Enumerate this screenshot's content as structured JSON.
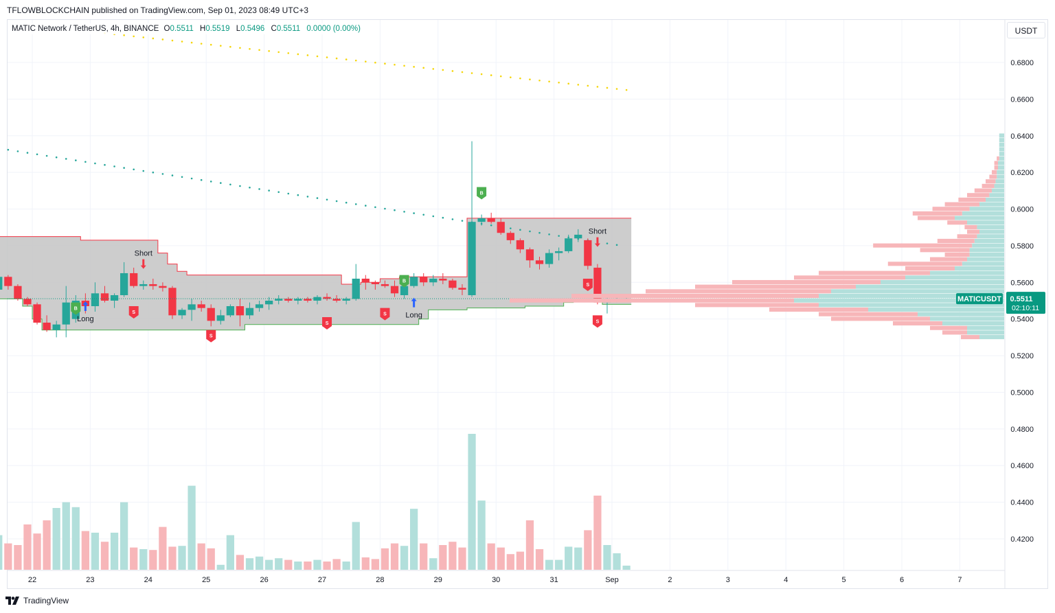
{
  "header": {
    "text": "TFLOWBLOCKCHAIN published on TradingView.com, Sep 01, 2023 08:49 UTC+3"
  },
  "legend": {
    "symbol": "MATIC Network / TetherUS, 4h, BINANCE",
    "open_label": "O",
    "open": "0.5511",
    "high_label": "H",
    "high": "0.5519",
    "low_label": "L",
    "low": "0.5496",
    "close_label": "C",
    "close": "0.5511",
    "change": "0.0000 (0.00%)"
  },
  "currency_button": "USDT",
  "footer": {
    "brand": "TradingView",
    "logo_icon": "tradingview-logo-icon"
  },
  "colors": {
    "up": "#26a69a",
    "down": "#f23645",
    "up_volume": "#b2dfdb",
    "down_volume": "#f7b6b9",
    "band_fill": "#c8c8c8",
    "band_upper": "#f23645",
    "band_lower": "#4caf50",
    "yellow_dots": "#f5d60a",
    "teal_dots": "#26a69a",
    "grid": "#f0f3fa",
    "price_label_bg": "#089981",
    "buy_marker": "#4caf50",
    "sell_marker": "#f23645",
    "long_arrow": "#2962ff",
    "short_arrow": "#f23645"
  },
  "chart_data": {
    "type": "candlestick",
    "symbol": "MATICUSDT",
    "interval": "4h",
    "exchange": "BINANCE",
    "price_scale": {
      "ticks": [
        "0.6800",
        "0.6600",
        "0.6400",
        "0.6200",
        "0.6000",
        "0.5800",
        "0.5600",
        "0.5400",
        "0.5200",
        "0.5000",
        "0.4800",
        "0.4600",
        "0.4400",
        "0.4200"
      ],
      "ylim": [
        0.4,
        0.695
      ]
    },
    "time_axis": {
      "labels": [
        {
          "label": "22",
          "index": 4.5
        },
        {
          "label": "23",
          "index": 10.5
        },
        {
          "label": "24",
          "index": 16.5
        },
        {
          "label": "25",
          "index": 22.5
        },
        {
          "label": "26",
          "index": 28.5
        },
        {
          "label": "27",
          "index": 34.5
        },
        {
          "label": "28",
          "index": 40.5
        },
        {
          "label": "29",
          "index": 46.5
        },
        {
          "label": "30",
          "index": 52.5
        },
        {
          "label": "31",
          "index": 58.5
        },
        {
          "label": "Sep",
          "index": 64.5
        },
        {
          "label": "2",
          "index": 70.5
        },
        {
          "label": "3",
          "index": 76.5
        },
        {
          "label": "4",
          "index": 82.5
        },
        {
          "label": "5",
          "index": 88.5
        },
        {
          "label": "6",
          "index": 94.5
        },
        {
          "label": "7",
          "index": 100.5
        }
      ],
      "index_range": [
        -0.5,
        103.5
      ]
    },
    "last_price": {
      "ticker": "MATICUSDT",
      "price": "0.5511",
      "countdown": "02:10:11",
      "value": 0.5511
    },
    "candles": [
      [
        0.564,
        0.566,
        0.551,
        0.556
      ],
      [
        0.556,
        0.565,
        0.553,
        0.563
      ],
      [
        0.563,
        0.564,
        0.556,
        0.558
      ],
      [
        0.558,
        0.559,
        0.55,
        0.551
      ],
      [
        0.551,
        0.552,
        0.547,
        0.548
      ],
      [
        0.548,
        0.549,
        0.537,
        0.538
      ],
      [
        0.538,
        0.542,
        0.533,
        0.534
      ],
      [
        0.534,
        0.539,
        0.53,
        0.537
      ],
      [
        0.537,
        0.558,
        0.53,
        0.549
      ],
      [
        0.54,
        0.553,
        0.538,
        0.55
      ],
      [
        0.55,
        0.554,
        0.543,
        0.547
      ],
      [
        0.547,
        0.56,
        0.544,
        0.554
      ],
      [
        0.554,
        0.558,
        0.549,
        0.55
      ],
      [
        0.55,
        0.554,
        0.546,
        0.553
      ],
      [
        0.553,
        0.571,
        0.552,
        0.565
      ],
      [
        0.565,
        0.568,
        0.557,
        0.558
      ],
      [
        0.558,
        0.561,
        0.556,
        0.559
      ],
      [
        0.559,
        0.562,
        0.556,
        0.558
      ],
      [
        0.558,
        0.56,
        0.555,
        0.557
      ],
      [
        0.557,
        0.558,
        0.54,
        0.542
      ],
      [
        0.542,
        0.546,
        0.54,
        0.545
      ],
      [
        0.545,
        0.551,
        0.539,
        0.548
      ],
      [
        0.548,
        0.55,
        0.544,
        0.546
      ],
      [
        0.546,
        0.548,
        0.536,
        0.539
      ],
      [
        0.539,
        0.545,
        0.537,
        0.542
      ],
      [
        0.542,
        0.548,
        0.541,
        0.547
      ],
      [
        0.547,
        0.551,
        0.536,
        0.542
      ],
      [
        0.542,
        0.549,
        0.54,
        0.546
      ],
      [
        0.546,
        0.55,
        0.544,
        0.548
      ],
      [
        0.548,
        0.552,
        0.545,
        0.55
      ],
      [
        0.55,
        0.553,
        0.548,
        0.551
      ],
      [
        0.551,
        0.552,
        0.549,
        0.55
      ],
      [
        0.55,
        0.552,
        0.548,
        0.551
      ],
      [
        0.551,
        0.552,
        0.549,
        0.55
      ],
      [
        0.55,
        0.553,
        0.548,
        0.552
      ],
      [
        0.552,
        0.554,
        0.55,
        0.551
      ],
      [
        0.551,
        0.553,
        0.549,
        0.55
      ],
      [
        0.55,
        0.552,
        0.548,
        0.551
      ],
      [
        0.551,
        0.57,
        0.55,
        0.562
      ],
      [
        0.562,
        0.564,
        0.556,
        0.56
      ],
      [
        0.56,
        0.561,
        0.556,
        0.559
      ],
      [
        0.559,
        0.561,
        0.557,
        0.558
      ],
      [
        0.558,
        0.561,
        0.552,
        0.554
      ],
      [
        0.553,
        0.56,
        0.551,
        0.558
      ],
      [
        0.558,
        0.565,
        0.557,
        0.563
      ],
      [
        0.563,
        0.565,
        0.558,
        0.56
      ],
      [
        0.56,
        0.564,
        0.558,
        0.562
      ],
      [
        0.562,
        0.565,
        0.559,
        0.561
      ],
      [
        0.561,
        0.562,
        0.556,
        0.557
      ],
      [
        0.557,
        0.559,
        0.553,
        0.556
      ],
      [
        0.553,
        0.637,
        0.552,
        0.593
      ],
      [
        0.593,
        0.597,
        0.591,
        0.595
      ],
      [
        0.595,
        0.598,
        0.592,
        0.593
      ],
      [
        0.593,
        0.595,
        0.586,
        0.587
      ],
      [
        0.587,
        0.588,
        0.581,
        0.583
      ],
      [
        0.583,
        0.584,
        0.576,
        0.578
      ],
      [
        0.578,
        0.579,
        0.568,
        0.572
      ],
      [
        0.572,
        0.574,
        0.567,
        0.57
      ],
      [
        0.57,
        0.578,
        0.568,
        0.576
      ],
      [
        0.576,
        0.579,
        0.572,
        0.577
      ],
      [
        0.577,
        0.586,
        0.576,
        0.584
      ],
      [
        0.584,
        0.589,
        0.582,
        0.586
      ],
      [
        0.583,
        0.584,
        0.567,
        0.569
      ],
      [
        0.568,
        0.57,
        0.548,
        0.549
      ],
      [
        0.549,
        0.552,
        0.543,
        0.55
      ],
      [
        0.55,
        0.553,
        0.549,
        0.551
      ],
      [
        0.5511,
        0.5519,
        0.5496,
        0.5511
      ]
    ],
    "volume": [
      0.2,
      0.42,
      0.32,
      0.3,
      0.55,
      0.44,
      0.6,
      0.75,
      0.82,
      0.76,
      0.47,
      0.45,
      0.34,
      0.45,
      0.82,
      0.27,
      0.25,
      0.24,
      0.52,
      0.28,
      0.29,
      1.02,
      0.32,
      0.26,
      0.06,
      0.42,
      0.18,
      0.14,
      0.16,
      0.12,
      0.14,
      0.12,
      0.1,
      0.1,
      0.12,
      0.1,
      0.13,
      0.1,
      0.58,
      0.15,
      0.13,
      0.26,
      0.32,
      0.29,
      0.74,
      0.32,
      0.14,
      0.3,
      0.34,
      0.27,
      1.65,
      0.84,
      0.32,
      0.27,
      0.19,
      0.22,
      0.6,
      0.25,
      0.12,
      0.12,
      0.28,
      0.27,
      0.48,
      0.9,
      0.3,
      0.2,
      0.05
    ],
    "trend_band": {
      "upper": [
        0.585,
        0.585,
        0.585,
        0.585,
        0.585,
        0.585,
        0.585,
        0.585,
        0.585,
        0.585,
        0.583,
        0.583,
        0.583,
        0.583,
        0.583,
        0.583,
        0.583,
        0.583,
        0.576,
        0.57,
        0.566,
        0.564,
        0.564,
        0.564,
        0.564,
        0.564,
        0.564,
        0.564,
        0.564,
        0.564,
        0.564,
        0.564,
        0.564,
        0.564,
        0.564,
        0.564,
        0.564,
        0.559,
        0.559,
        0.56,
        0.56,
        0.562,
        0.562,
        0.563,
        0.563,
        0.563,
        0.563,
        0.563,
        0.563,
        0.563,
        0.595,
        0.595,
        0.595,
        0.595,
        0.595,
        0.595,
        0.595,
        0.595,
        0.595,
        0.595,
        0.595,
        0.595,
        0.595,
        0.595,
        0.595,
        0.595,
        0.595
      ],
      "lower": [
        0.551,
        0.551,
        0.551,
        0.551,
        0.547,
        0.54,
        0.534,
        0.534,
        0.534,
        0.534,
        0.534,
        0.534,
        0.534,
        0.534,
        0.534,
        0.534,
        0.534,
        0.534,
        0.534,
        0.534,
        0.534,
        0.534,
        0.534,
        0.534,
        0.534,
        0.534,
        0.534,
        0.537,
        0.537,
        0.537,
        0.537,
        0.537,
        0.537,
        0.537,
        0.537,
        0.537,
        0.537,
        0.537,
        0.537,
        0.537,
        0.537,
        0.537,
        0.537,
        0.537,
        0.537,
        0.54,
        0.545,
        0.545,
        0.545,
        0.545,
        0.546,
        0.546,
        0.546,
        0.546,
        0.546,
        0.546,
        0.547,
        0.547,
        0.547,
        0.547,
        0.549,
        0.55,
        0.55,
        0.55,
        0.548,
        0.548,
        0.548
      ]
    },
    "dotted_lines": [
      {
        "name": "yellow",
        "start_index": 12,
        "end_index": 66,
        "start": 0.696,
        "end": 0.665
      },
      {
        "name": "teal",
        "start_index": 0,
        "end_index": 65.5,
        "start": 0.634,
        "end": 0.58
      }
    ],
    "signals": [
      {
        "type": "buy",
        "index": 9,
        "price": 0.546,
        "label": "B"
      },
      {
        "type": "long",
        "index": 10,
        "price": 0.547,
        "label": "Long"
      },
      {
        "type": "short",
        "index": 16,
        "price": 0.57,
        "label": "Short"
      },
      {
        "type": "sell",
        "index": 15,
        "price": 0.544,
        "label": "S"
      },
      {
        "type": "sell",
        "index": 23,
        "price": 0.531,
        "label": "S"
      },
      {
        "type": "sell",
        "index": 35,
        "price": 0.538,
        "label": "S"
      },
      {
        "type": "sell",
        "index": 41,
        "price": 0.543,
        "label": "S"
      },
      {
        "type": "buy",
        "index": 43,
        "price": 0.561,
        "label": "B"
      },
      {
        "type": "long",
        "index": 44,
        "price": 0.549,
        "label": "Long"
      },
      {
        "type": "buy",
        "index": 51,
        "price": 0.609,
        "label": "B"
      },
      {
        "type": "short",
        "index": 63,
        "price": 0.582,
        "label": "Short"
      },
      {
        "type": "sell",
        "index": 62,
        "price": 0.559,
        "label": "S"
      },
      {
        "type": "sell",
        "index": 63,
        "price": 0.539,
        "label": "S"
      }
    ],
    "volume_profile": {
      "price_step": 0.0025,
      "bins": [
        {
          "price": 0.64,
          "buy": 0.004,
          "sell": 0.0
        },
        {
          "price": 0.6375,
          "buy": 0.004,
          "sell": 0.0
        },
        {
          "price": 0.635,
          "buy": 0.004,
          "sell": 0.0
        },
        {
          "price": 0.6325,
          "buy": 0.004,
          "sell": 0.0
        },
        {
          "price": 0.63,
          "buy": 0.004,
          "sell": 0.0
        },
        {
          "price": 0.6275,
          "buy": 0.004,
          "sell": 0.002
        },
        {
          "price": 0.625,
          "buy": 0.005,
          "sell": 0.003
        },
        {
          "price": 0.6225,
          "buy": 0.005,
          "sell": 0.003
        },
        {
          "price": 0.62,
          "buy": 0.006,
          "sell": 0.004
        },
        {
          "price": 0.6175,
          "buy": 0.006,
          "sell": 0.006
        },
        {
          "price": 0.615,
          "buy": 0.007,
          "sell": 0.008
        },
        {
          "price": 0.6125,
          "buy": 0.008,
          "sell": 0.01
        },
        {
          "price": 0.61,
          "buy": 0.01,
          "sell": 0.014
        },
        {
          "price": 0.6075,
          "buy": 0.012,
          "sell": 0.018
        },
        {
          "price": 0.605,
          "buy": 0.015,
          "sell": 0.022
        },
        {
          "price": 0.6025,
          "buy": 0.02,
          "sell": 0.028
        },
        {
          "price": 0.6,
          "buy": 0.028,
          "sell": 0.03
        },
        {
          "price": 0.5975,
          "buy": 0.034,
          "sell": 0.04
        },
        {
          "price": 0.595,
          "buy": 0.04,
          "sell": 0.03
        },
        {
          "price": 0.5925,
          "buy": 0.03,
          "sell": 0.016
        },
        {
          "price": 0.59,
          "buy": 0.022,
          "sell": 0.01
        },
        {
          "price": 0.5875,
          "buy": 0.02,
          "sell": 0.01
        },
        {
          "price": 0.585,
          "buy": 0.022,
          "sell": 0.016
        },
        {
          "price": 0.5825,
          "buy": 0.024,
          "sell": 0.03
        },
        {
          "price": 0.58,
          "buy": 0.026,
          "sell": 0.08
        },
        {
          "price": 0.5775,
          "buy": 0.028,
          "sell": 0.04
        },
        {
          "price": 0.575,
          "buy": 0.028,
          "sell": 0.02
        },
        {
          "price": 0.5725,
          "buy": 0.03,
          "sell": 0.03
        },
        {
          "price": 0.57,
          "buy": 0.034,
          "sell": 0.06
        },
        {
          "price": 0.5675,
          "buy": 0.04,
          "sell": 0.04
        },
        {
          "price": 0.565,
          "buy": 0.06,
          "sell": 0.09
        },
        {
          "price": 0.5625,
          "buy": 0.08,
          "sell": 0.09
        },
        {
          "price": 0.56,
          "buy": 0.1,
          "sell": 0.12
        },
        {
          "price": 0.5575,
          "buy": 0.12,
          "sell": 0.13
        },
        {
          "price": 0.555,
          "buy": 0.14,
          "sell": 0.15
        },
        {
          "price": 0.5525,
          "buy": 0.15,
          "sell": 0.2
        },
        {
          "price": 0.55,
          "buy": 0.17,
          "sell": 0.23
        },
        {
          "price": 0.5475,
          "buy": 0.15,
          "sell": 0.1
        },
        {
          "price": 0.545,
          "buy": 0.11,
          "sell": 0.08
        },
        {
          "price": 0.5425,
          "buy": 0.07,
          "sell": 0.08
        },
        {
          "price": 0.54,
          "buy": 0.06,
          "sell": 0.08
        },
        {
          "price": 0.5375,
          "buy": 0.05,
          "sell": 0.04
        },
        {
          "price": 0.535,
          "buy": 0.03,
          "sell": 0.03
        },
        {
          "price": 0.5325,
          "buy": 0.03,
          "sell": 0.02
        },
        {
          "price": 0.53,
          "buy": 0.02,
          "sell": 0.015
        }
      ]
    }
  }
}
